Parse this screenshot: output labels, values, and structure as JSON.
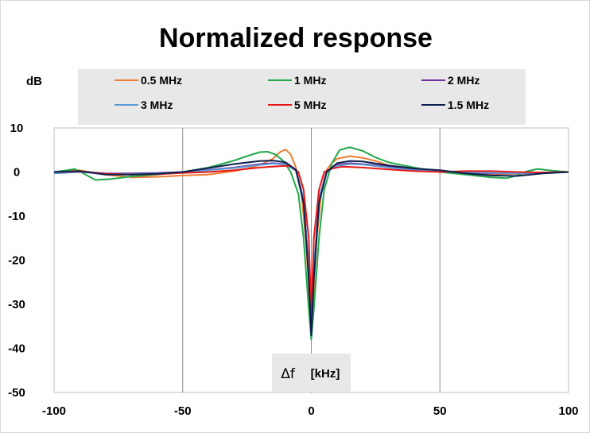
{
  "chart_data": {
    "type": "line",
    "title": "Normalized response",
    "ylabel": "dB",
    "xlabel_symbol": "Δf",
    "xlabel_unit": "[kHz]",
    "xlim": [
      -100,
      100
    ],
    "ylim": [
      -50,
      10
    ],
    "x_ticks": [
      -100,
      -50,
      0,
      50,
      100
    ],
    "y_ticks": [
      10,
      0,
      -10,
      -20,
      -30,
      -40,
      -50
    ],
    "grid": "x-major only",
    "legend_position": "top",
    "series": [
      {
        "name": "0.5 MHz",
        "color": "#ED7D31",
        "points": [
          [
            -100,
            0
          ],
          [
            -90,
            0.4
          ],
          [
            -80,
            -0.6
          ],
          [
            -70,
            -1.2
          ],
          [
            -60,
            -1.1
          ],
          [
            -50,
            -0.8
          ],
          [
            -40,
            -0.6
          ],
          [
            -30,
            0.2
          ],
          [
            -25,
            0.8
          ],
          [
            -20,
            1.6
          ],
          [
            -15,
            3.0
          ],
          [
            -12,
            4.6
          ],
          [
            -10,
            5.1
          ],
          [
            -8,
            4.0
          ],
          [
            -6,
            1.0
          ],
          [
            -4,
            -4
          ],
          [
            -2,
            -16
          ],
          [
            0,
            -36
          ],
          [
            2,
            -16
          ],
          [
            4,
            -4
          ],
          [
            6,
            0.5
          ],
          [
            8,
            2.0
          ],
          [
            10,
            3.0
          ],
          [
            15,
            3.6
          ],
          [
            20,
            3.2
          ],
          [
            25,
            2.5
          ],
          [
            30,
            1.5
          ],
          [
            40,
            0.8
          ],
          [
            50,
            0
          ],
          [
            60,
            -0.5
          ],
          [
            70,
            -0.5
          ],
          [
            80,
            -0.4
          ],
          [
            90,
            -0.2
          ],
          [
            100,
            0
          ]
        ]
      },
      {
        "name": "1 MHz",
        "color": "#22A84A",
        "points": [
          [
            -100,
            0
          ],
          [
            -95,
            0.4
          ],
          [
            -92,
            0.7
          ],
          [
            -88,
            -0.5
          ],
          [
            -84,
            -1.8
          ],
          [
            -78,
            -1.6
          ],
          [
            -70,
            -1.0
          ],
          [
            -60,
            -0.6
          ],
          [
            -50,
            0
          ],
          [
            -40,
            1.0
          ],
          [
            -30,
            2.6
          ],
          [
            -25,
            3.6
          ],
          [
            -20,
            4.5
          ],
          [
            -17,
            4.6
          ],
          [
            -14,
            4.0
          ],
          [
            -11,
            2.6
          ],
          [
            -8,
            0
          ],
          [
            -5,
            -5
          ],
          [
            -3,
            -15
          ],
          [
            -1,
            -31
          ],
          [
            0,
            -38
          ],
          [
            1,
            -31
          ],
          [
            3,
            -15
          ],
          [
            5,
            -4
          ],
          [
            8,
            2
          ],
          [
            11,
            5.0
          ],
          [
            15,
            5.6
          ],
          [
            20,
            4.8
          ],
          [
            25,
            3.3
          ],
          [
            30,
            2.2
          ],
          [
            40,
            1.0
          ],
          [
            50,
            0
          ],
          [
            60,
            -0.6
          ],
          [
            70,
            -1.2
          ],
          [
            76,
            -1.4
          ],
          [
            80,
            -0.8
          ],
          [
            84,
            0.2
          ],
          [
            88,
            0.7
          ],
          [
            92,
            0.4
          ],
          [
            100,
            0
          ]
        ]
      },
      {
        "name": "2 MHz",
        "color": "#7030A0",
        "points": [
          [
            -100,
            0
          ],
          [
            -90,
            0.1
          ],
          [
            -80,
            -0.3
          ],
          [
            -70,
            -0.3
          ],
          [
            -60,
            -0.2
          ],
          [
            -50,
            0
          ],
          [
            -40,
            0.5
          ],
          [
            -30,
            1.0
          ],
          [
            -20,
            1.8
          ],
          [
            -15,
            2.0
          ],
          [
            -10,
            1.8
          ],
          [
            -6,
            0.5
          ],
          [
            -3,
            -6
          ],
          [
            -1,
            -22
          ],
          [
            0,
            -37
          ],
          [
            1,
            -22
          ],
          [
            3,
            -6
          ],
          [
            6,
            0.2
          ],
          [
            10,
            1.6
          ],
          [
            15,
            2.0
          ],
          [
            20,
            1.8
          ],
          [
            30,
            1.2
          ],
          [
            40,
            0.6
          ],
          [
            50,
            0.2
          ],
          [
            60,
            -0.1
          ],
          [
            70,
            -0.3
          ],
          [
            80,
            -0.3
          ],
          [
            90,
            -0.1
          ],
          [
            100,
            0
          ]
        ]
      },
      {
        "name": "3 MHz",
        "color": "#5B9BD5",
        "points": [
          [
            -100,
            -0.3
          ],
          [
            -90,
            0
          ],
          [
            -80,
            -0.4
          ],
          [
            -70,
            -0.5
          ],
          [
            -60,
            -0.3
          ],
          [
            -50,
            0
          ],
          [
            -40,
            0.4
          ],
          [
            -30,
            0.9
          ],
          [
            -20,
            1.6
          ],
          [
            -15,
            1.9
          ],
          [
            -10,
            1.7
          ],
          [
            -6,
            0.3
          ],
          [
            -3,
            -6
          ],
          [
            -1,
            -22
          ],
          [
            0,
            -36
          ],
          [
            1,
            -22
          ],
          [
            3,
            -6
          ],
          [
            6,
            0
          ],
          [
            10,
            1.4
          ],
          [
            15,
            1.8
          ],
          [
            20,
            1.7
          ],
          [
            30,
            1.0
          ],
          [
            40,
            0.4
          ],
          [
            50,
            0.2
          ],
          [
            60,
            0
          ],
          [
            70,
            -0.2
          ],
          [
            80,
            -0.3
          ],
          [
            90,
            -0.2
          ],
          [
            100,
            0
          ]
        ]
      },
      {
        "name": "5 MHz",
        "color": "#E81818",
        "points": [
          [
            -100,
            0
          ],
          [
            -90,
            0.1
          ],
          [
            -80,
            -0.4
          ],
          [
            -70,
            -0.6
          ],
          [
            -60,
            -0.5
          ],
          [
            -50,
            -0.2
          ],
          [
            -40,
            0
          ],
          [
            -30,
            0.4
          ],
          [
            -20,
            1.0
          ],
          [
            -15,
            1.2
          ],
          [
            -10,
            1.4
          ],
          [
            -8,
            1.3
          ],
          [
            -5,
            0
          ],
          [
            -3,
            -4
          ],
          [
            -1,
            -15
          ],
          [
            0,
            -32
          ],
          [
            1,
            -15
          ],
          [
            3,
            -4
          ],
          [
            5,
            0
          ],
          [
            8,
            0.8
          ],
          [
            12,
            1.2
          ],
          [
            20,
            1.0
          ],
          [
            30,
            0.6
          ],
          [
            40,
            0.2
          ],
          [
            50,
            0
          ],
          [
            60,
            0.2
          ],
          [
            70,
            0.2
          ],
          [
            80,
            0
          ],
          [
            90,
            -0.1
          ],
          [
            100,
            0
          ]
        ]
      },
      {
        "name": "1.5 MHz",
        "color": "#0B1E4F",
        "points": [
          [
            -100,
            0
          ],
          [
            -90,
            0.2
          ],
          [
            -80,
            -0.6
          ],
          [
            -70,
            -0.6
          ],
          [
            -60,
            -0.4
          ],
          [
            -50,
            0
          ],
          [
            -40,
            0.9
          ],
          [
            -30,
            1.8
          ],
          [
            -20,
            2.5
          ],
          [
            -15,
            2.6
          ],
          [
            -10,
            2.2
          ],
          [
            -6,
            0.5
          ],
          [
            -3,
            -7
          ],
          [
            -1,
            -24
          ],
          [
            0,
            -37
          ],
          [
            1,
            -24
          ],
          [
            3,
            -7
          ],
          [
            6,
            0
          ],
          [
            10,
            2.0
          ],
          [
            15,
            2.5
          ],
          [
            20,
            2.4
          ],
          [
            30,
            1.5
          ],
          [
            40,
            0.8
          ],
          [
            50,
            0.4
          ],
          [
            60,
            -0.3
          ],
          [
            70,
            -0.8
          ],
          [
            80,
            -0.9
          ],
          [
            90,
            -0.3
          ],
          [
            100,
            0
          ]
        ]
      }
    ]
  }
}
